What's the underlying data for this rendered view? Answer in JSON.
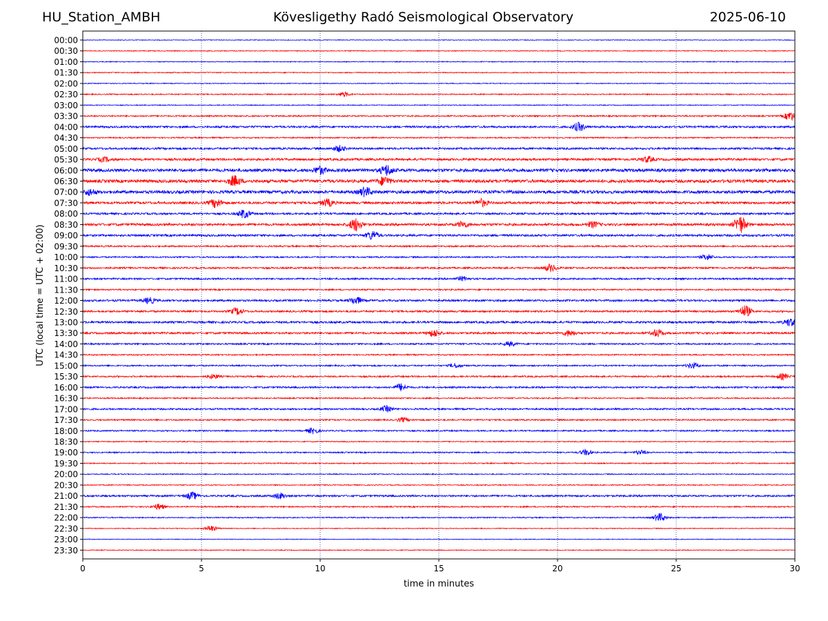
{
  "header": {
    "station": "HU_Station_AMBH",
    "observatory": "Kövesligethy Radó Seismological Observatory",
    "date": "2025-06-10"
  },
  "chart_data": {
    "type": "line",
    "title": "Kövesligethy Radó Seismological Observatory",
    "xlabel": "time in minutes",
    "ylabel": "UTC (local time = UTC + 02:00)",
    "xlim": [
      0,
      30
    ],
    "xticks": [
      0,
      5,
      10,
      15,
      20,
      25,
      30
    ],
    "grid": "vertical dotted lines at 5, 10, 15, 20, 25 minutes",
    "trace_colors": [
      "#0000ff",
      "#ff0000"
    ],
    "rows": [
      "00:00",
      "00:30",
      "01:00",
      "01:30",
      "02:00",
      "02:30",
      "03:00",
      "03:30",
      "04:00",
      "04:30",
      "05:00",
      "05:30",
      "06:00",
      "06:30",
      "07:00",
      "07:30",
      "08:00",
      "08:30",
      "09:00",
      "09:30",
      "10:00",
      "10:30",
      "11:00",
      "11:30",
      "12:00",
      "12:30",
      "13:00",
      "13:30",
      "14:00",
      "14:30",
      "15:00",
      "15:30",
      "16:00",
      "16:30",
      "17:00",
      "17:30",
      "18:00",
      "18:30",
      "19:00",
      "19:30",
      "20:00",
      "20:30",
      "21:00",
      "21:30",
      "22:00",
      "22:30",
      "23:00",
      "23:30"
    ],
    "row_noise": [
      0.5,
      0.6,
      0.6,
      0.7,
      0.6,
      0.8,
      0.6,
      1.0,
      1.4,
      0.9,
      1.4,
      1.6,
      2.2,
      2.2,
      2.2,
      1.7,
      1.4,
      1.7,
      1.5,
      1.1,
      1.0,
      1.2,
      1.2,
      1.0,
      1.4,
      1.3,
      1.5,
      1.4,
      1.1,
      0.9,
      1.0,
      1.1,
      1.2,
      0.9,
      1.2,
      1.0,
      1.0,
      0.7,
      0.9,
      0.8,
      0.7,
      0.7,
      1.3,
      0.9,
      0.8,
      0.6,
      0.5,
      0.6
    ],
    "events": [
      {
        "row": "02:30",
        "minute": 11.0,
        "amplitude": 3
      },
      {
        "row": "03:30",
        "minute": 29.8,
        "amplitude": 6
      },
      {
        "row": "04:00",
        "minute": 20.9,
        "amplitude": 6
      },
      {
        "row": "05:00",
        "minute": 10.8,
        "amplitude": 4
      },
      {
        "row": "05:30",
        "minute": 0.9,
        "amplitude": 3
      },
      {
        "row": "05:30",
        "minute": 23.8,
        "amplitude": 4
      },
      {
        "row": "06:00",
        "minute": 12.8,
        "amplitude": 7
      },
      {
        "row": "06:00",
        "minute": 10.0,
        "amplitude": 5
      },
      {
        "row": "06:30",
        "minute": 6.4,
        "amplitude": 7
      },
      {
        "row": "06:30",
        "minute": 12.7,
        "amplitude": 6
      },
      {
        "row": "07:00",
        "minute": 11.9,
        "amplitude": 6
      },
      {
        "row": "07:00",
        "minute": 0.3,
        "amplitude": 4
      },
      {
        "row": "07:30",
        "minute": 5.6,
        "amplitude": 6
      },
      {
        "row": "07:30",
        "minute": 10.3,
        "amplitude": 5
      },
      {
        "row": "07:30",
        "minute": 16.8,
        "amplitude": 5
      },
      {
        "row": "08:00",
        "minute": 6.8,
        "amplitude": 6
      },
      {
        "row": "08:30",
        "minute": 11.5,
        "amplitude": 9
      },
      {
        "row": "08:30",
        "minute": 27.7,
        "amplitude": 12
      },
      {
        "row": "08:30",
        "minute": 16.0,
        "amplitude": 4
      },
      {
        "row": "08:30",
        "minute": 21.5,
        "amplitude": 4
      },
      {
        "row": "09:00",
        "minute": 12.2,
        "amplitude": 6
      },
      {
        "row": "10:00",
        "minute": 26.3,
        "amplitude": 4
      },
      {
        "row": "10:30",
        "minute": 19.7,
        "amplitude": 5
      },
      {
        "row": "11:00",
        "minute": 16.0,
        "amplitude": 3
      },
      {
        "row": "12:00",
        "minute": 11.5,
        "amplitude": 5
      },
      {
        "row": "12:00",
        "minute": 2.8,
        "amplitude": 4
      },
      {
        "row": "12:30",
        "minute": 6.5,
        "amplitude": 5
      },
      {
        "row": "12:30",
        "minute": 27.9,
        "amplitude": 8
      },
      {
        "row": "13:00",
        "minute": 29.8,
        "amplitude": 5
      },
      {
        "row": "13:30",
        "minute": 14.8,
        "amplitude": 5
      },
      {
        "row": "13:30",
        "minute": 24.2,
        "amplitude": 5
      },
      {
        "row": "13:30",
        "minute": 20.5,
        "amplitude": 4
      },
      {
        "row": "14:00",
        "minute": 18.0,
        "amplitude": 3
      },
      {
        "row": "15:00",
        "minute": 15.7,
        "amplitude": 3
      },
      {
        "row": "15:00",
        "minute": 25.7,
        "amplitude": 4
      },
      {
        "row": "15:30",
        "minute": 29.5,
        "amplitude": 4
      },
      {
        "row": "15:30",
        "minute": 5.5,
        "amplitude": 3
      },
      {
        "row": "16:00",
        "minute": 13.4,
        "amplitude": 5
      },
      {
        "row": "17:00",
        "minute": 12.8,
        "amplitude": 4
      },
      {
        "row": "17:30",
        "minute": 13.5,
        "amplitude": 3
      },
      {
        "row": "18:00",
        "minute": 9.7,
        "amplitude": 4
      },
      {
        "row": "19:00",
        "minute": 21.2,
        "amplitude": 4
      },
      {
        "row": "19:00",
        "minute": 23.5,
        "amplitude": 3
      },
      {
        "row": "21:00",
        "minute": 4.6,
        "amplitude": 5
      },
      {
        "row": "21:00",
        "minute": 8.3,
        "amplitude": 4
      },
      {
        "row": "21:30",
        "minute": 3.2,
        "amplitude": 4
      },
      {
        "row": "22:00",
        "minute": 24.3,
        "amplitude": 6
      },
      {
        "row": "22:30",
        "minute": 5.4,
        "amplitude": 4
      }
    ]
  }
}
